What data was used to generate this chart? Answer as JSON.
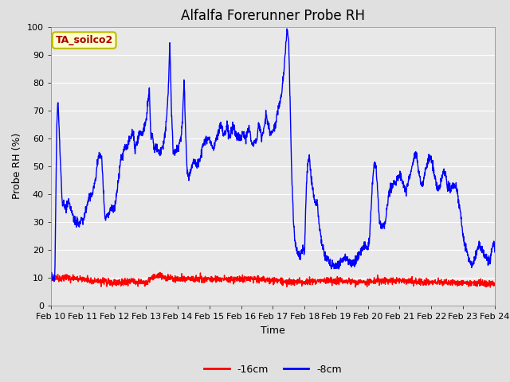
{
  "title": "Alfalfa Forerunner Probe RH",
  "xlabel": "Time",
  "ylabel": "Probe RH (%)",
  "ylim": [
    0,
    100
  ],
  "x_tick_labels": [
    "Feb 10",
    "Feb 11",
    "Feb 12",
    "Feb 13",
    "Feb 14",
    "Feb 15",
    "Feb 16",
    "Feb 17",
    "Feb 18",
    "Feb 19",
    "Feb 20",
    "Feb 21",
    "Feb 22",
    "Feb 23",
    "Feb 24"
  ],
  "background_color": "#e0e0e0",
  "plot_bg_color": "#e8e8e8",
  "legend_labels": [
    "-16cm",
    "-8cm"
  ],
  "legend_colors": [
    "#ff0000",
    "#0000ff"
  ],
  "annotation_text": "TA_soilco2",
  "annotation_bg": "#ffffcc",
  "annotation_border": "#cccc00",
  "annotation_text_color": "#aa0000",
  "title_fontsize": 12,
  "axis_label_fontsize": 9,
  "tick_fontsize": 8
}
